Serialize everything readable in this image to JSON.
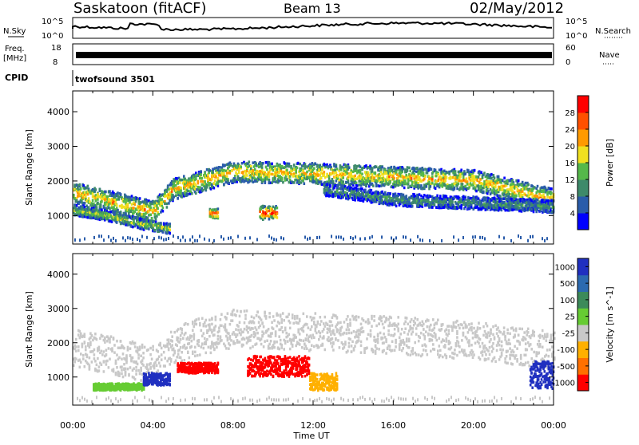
{
  "header": {
    "site": "Saskatoon (fitACF)",
    "beam": "Beam 13",
    "date": "02/May/2012"
  },
  "panel_labels": {
    "nsky": "N.Sky",
    "nsearch": "N.Search",
    "freq_line1": "Freq.",
    "freq_unit": "[MHz]",
    "nave": "Nave",
    "cpid": "CPID",
    "cpid_value": "twofsound 3501",
    "noise_lo": "10^0",
    "noise_hi": "10^5",
    "noise_hi_r": "10^5",
    "noise_lo_r": "10^0",
    "freq_hi": "18",
    "freq_lo": "8",
    "nave_hi": "60",
    "nave_lo": "0"
  },
  "time_axis": {
    "label": "Time UT",
    "ticks": [
      "00:00",
      "04:00",
      "08:00",
      "12:00",
      "16:00",
      "20:00",
      "00:00"
    ]
  },
  "chart_data": [
    {
      "type": "heatmap",
      "title": "Power",
      "ylabel": "Slant Range [km]",
      "xlabel": "Time UT",
      "xlim": [
        0,
        24
      ],
      "ylim": [
        180,
        4600
      ],
      "yticks": [
        "1000",
        "2000",
        "3000",
        "4000"
      ],
      "colorbar": {
        "label": "Power [dB]",
        "ticks": [
          "4",
          "8",
          "12",
          "16",
          "20",
          "24",
          "28"
        ],
        "range": [
          0,
          30
        ],
        "colors": [
          "#0000ff",
          "#2a5caa",
          "#3e8a6a",
          "#55b84a",
          "#f0e020",
          "#ff9a00",
          "#ff5000",
          "#ff0000"
        ]
      },
      "bands": [
        {
          "t": [
            0,
            4,
            5,
            8,
            12,
            16,
            20,
            24
          ],
          "r": [
            1700,
            1150,
            1800,
            2300,
            2250,
            2150,
            2050,
            1500
          ],
          "w": 500,
          "p": 18
        },
        {
          "t": [
            0,
            2,
            3.5,
            4.8
          ],
          "r": [
            1200,
            1000,
            780,
            650
          ],
          "w": 250,
          "p": 14
        },
        {
          "t": [
            12.5,
            16,
            20,
            24
          ],
          "r": [
            1800,
            1500,
            1400,
            1300
          ],
          "w": 300,
          "p": 9
        },
        {
          "t": [
            9.3,
            10.2
          ],
          "r": [
            1120,
            1120
          ],
          "w": 330,
          "p": 25
        },
        {
          "t": [
            6.8,
            7.2
          ],
          "r": [
            1100,
            1100
          ],
          "w": 250,
          "p": 24
        }
      ]
    },
    {
      "type": "heatmap",
      "title": "Velocity",
      "ylabel": "Slant Range [km]",
      "xlabel": "Time UT",
      "xlim": [
        0,
        24
      ],
      "ylim": [
        180,
        4600
      ],
      "yticks": [
        "1000",
        "2000",
        "3000",
        "4000"
      ],
      "colorbar": {
        "label": "Velocity [m s^-1]",
        "ticks": [
          "1000",
          "500",
          "100",
          "25",
          "-25",
          "-100",
          "-500",
          "-1000"
        ],
        "colors": [
          "#2030c0",
          "#2c6ab0",
          "#3c8a5a",
          "#66cc33",
          "#c8c8c8",
          "#ffb000",
          "#ff7000",
          "#ff0000"
        ]
      },
      "regions": [
        {
          "t": [
            1,
            3.5
          ],
          "r": [
            650,
            850
          ],
          "v": "green"
        },
        {
          "t": [
            3.5,
            4.8
          ],
          "r": [
            800,
            1150
          ],
          "v": "blue"
        },
        {
          "t": [
            5.2,
            7.2
          ],
          "r": [
            1150,
            1450
          ],
          "v": "red"
        },
        {
          "t": [
            8.7,
            11.8
          ],
          "r": [
            1050,
            1650
          ],
          "v": "red"
        },
        {
          "t": [
            11.8,
            13.2
          ],
          "r": [
            650,
            1150
          ],
          "v": "orange"
        },
        {
          "t": [
            22.8,
            24
          ],
          "r": [
            700,
            1500
          ],
          "v": "blue"
        }
      ]
    }
  ]
}
